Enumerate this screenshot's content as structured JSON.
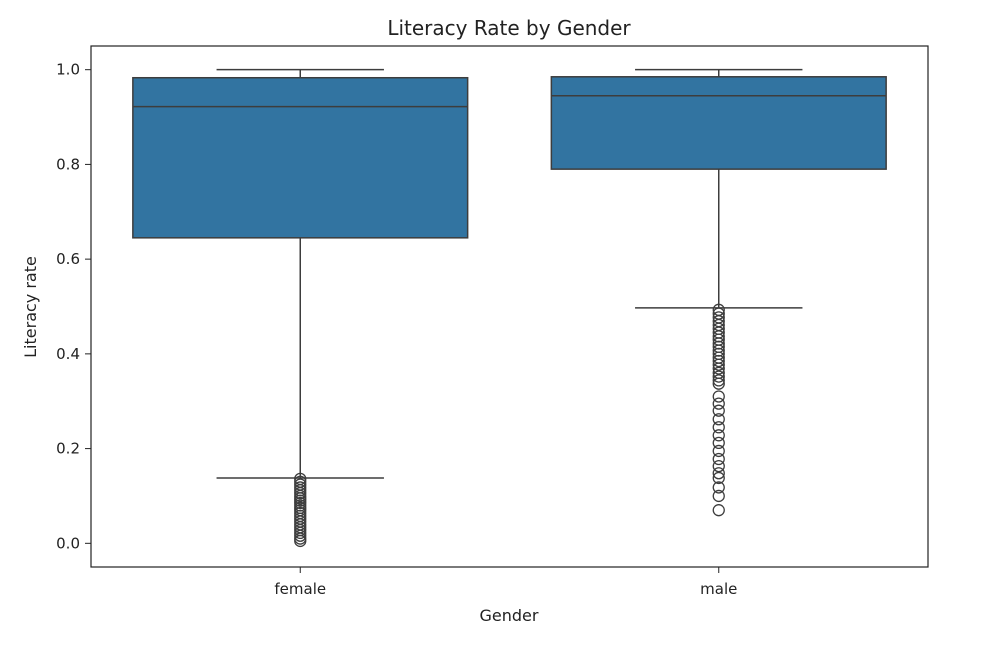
{
  "chart_data": {
    "type": "box",
    "title": "Literacy Rate by Gender",
    "xlabel": "Gender",
    "ylabel": "Literacy rate",
    "categories": [
      "female",
      "male"
    ],
    "ylim": [
      -0.05,
      1.05
    ],
    "yticks": [
      0.0,
      0.2,
      0.4,
      0.6,
      0.8,
      1.0
    ],
    "ytick_labels": [
      "0.0",
      "0.2",
      "0.4",
      "0.6",
      "0.8",
      "1.0"
    ],
    "grid": false,
    "box_color": "#3274a1",
    "edge_color": "#3d3d3d",
    "boxes": [
      {
        "category": "female",
        "whisker_low": 0.138,
        "q1": 0.645,
        "median": 0.922,
        "q3": 0.983,
        "whisker_high": 1.0,
        "outliers": [
          0.136,
          0.13,
          0.124,
          0.118,
          0.112,
          0.106,
          0.1,
          0.095,
          0.09,
          0.085,
          0.08,
          0.075,
          0.07,
          0.064,
          0.058,
          0.052,
          0.046,
          0.04,
          0.034,
          0.028,
          0.022,
          0.016,
          0.01,
          0.005
        ]
      },
      {
        "category": "male",
        "whisker_low": 0.497,
        "q1": 0.79,
        "median": 0.945,
        "q3": 0.985,
        "whisker_high": 1.0,
        "outliers": [
          0.493,
          0.485,
          0.477,
          0.469,
          0.461,
          0.453,
          0.445,
          0.437,
          0.43,
          0.422,
          0.415,
          0.407,
          0.4,
          0.392,
          0.385,
          0.377,
          0.369,
          0.36,
          0.352,
          0.344,
          0.337,
          0.31,
          0.295,
          0.28,
          0.262,
          0.245,
          0.228,
          0.212,
          0.195,
          0.178,
          0.163,
          0.148,
          0.138,
          0.118,
          0.1,
          0.07
        ]
      }
    ]
  }
}
